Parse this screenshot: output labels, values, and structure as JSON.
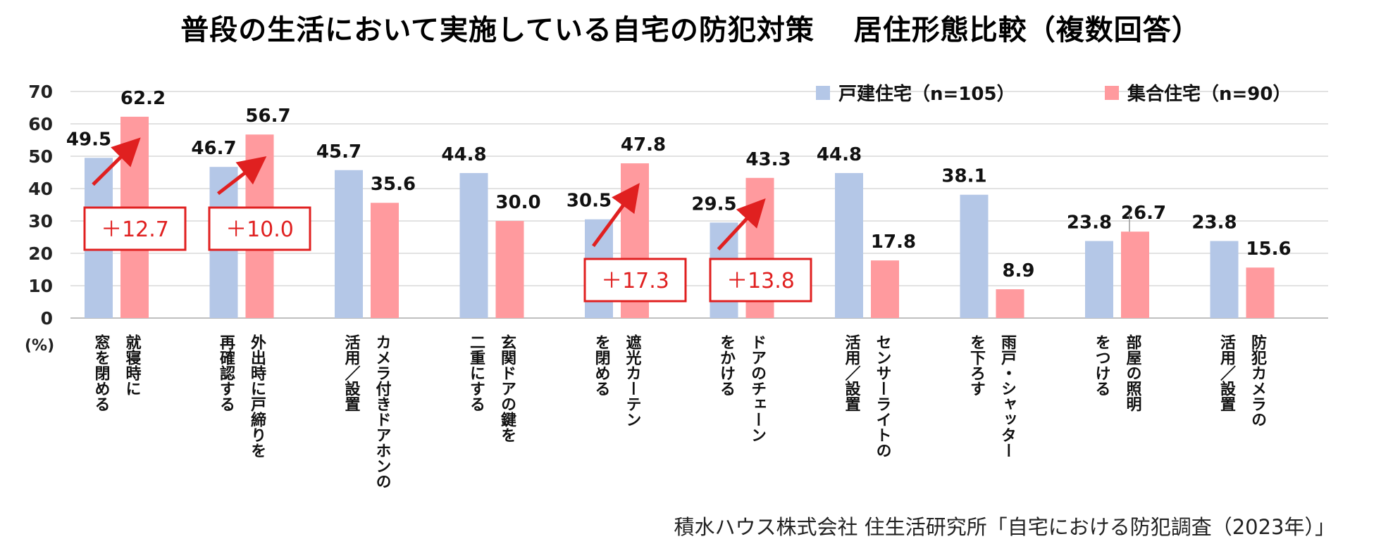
{
  "chart_data": {
    "type": "bar",
    "title": "普段の生活において実施している自宅の防犯対策　 居住形態比較（複数回答）",
    "ylabel": "(%)",
    "ylim": [
      0,
      70
    ],
    "yticks": [
      0,
      10,
      20,
      30,
      40,
      50,
      60,
      70
    ],
    "grid": true,
    "legend_position": "top-right",
    "categories": [
      [
        "就寝時に",
        "窓を閉める"
      ],
      [
        "外出時に戸締りを",
        "再確認する"
      ],
      [
        "カメラ付きドアホンの",
        "活用／設置"
      ],
      [
        "玄関ドアの鍵を",
        "二重にする"
      ],
      [
        "遮光カーテン",
        "を閉める"
      ],
      [
        "ドアのチェーン",
        "をかける"
      ],
      [
        "センサーライトの",
        "活用／設置"
      ],
      [
        "雨戸・シャッター",
        "を下ろす"
      ],
      [
        "部屋の照明",
        "をつける"
      ],
      [
        "防犯カメラの",
        "活用／設置"
      ]
    ],
    "series": [
      {
        "name": "戸建住宅（n=105）",
        "color": "#b4c7e7",
        "values": [
          49.5,
          46.7,
          45.7,
          44.8,
          30.5,
          29.5,
          44.8,
          38.1,
          23.8,
          23.8
        ],
        "labels": [
          "49.5",
          "46.7",
          "45.7",
          "44.8",
          "30.5",
          "29.5",
          "44.8",
          "38.1",
          "23.8",
          "23.8"
        ]
      },
      {
        "name": "集合住宅（n=90）",
        "color": "#ff9a9e",
        "values": [
          62.2,
          56.7,
          35.6,
          30.0,
          47.8,
          43.3,
          17.8,
          8.9,
          26.7,
          15.6
        ],
        "labels": [
          "62.2",
          "56.7",
          "35.6",
          "30.0",
          "47.8",
          "43.3",
          "17.8",
          "8.9",
          "26.7",
          "15.6"
        ]
      }
    ],
    "annotations": [
      {
        "category_index": 0,
        "text": "＋12.7"
      },
      {
        "category_index": 1,
        "text": "＋10.0"
      },
      {
        "category_index": 4,
        "text": "＋17.3"
      },
      {
        "category_index": 5,
        "text": "＋13.8"
      }
    ]
  },
  "source": "積水ハウス株式会社 住生活研究所「自宅における防犯調査（2023年）」",
  "colors": {
    "accent": "#e02020",
    "grid": "#d9d9d9"
  }
}
